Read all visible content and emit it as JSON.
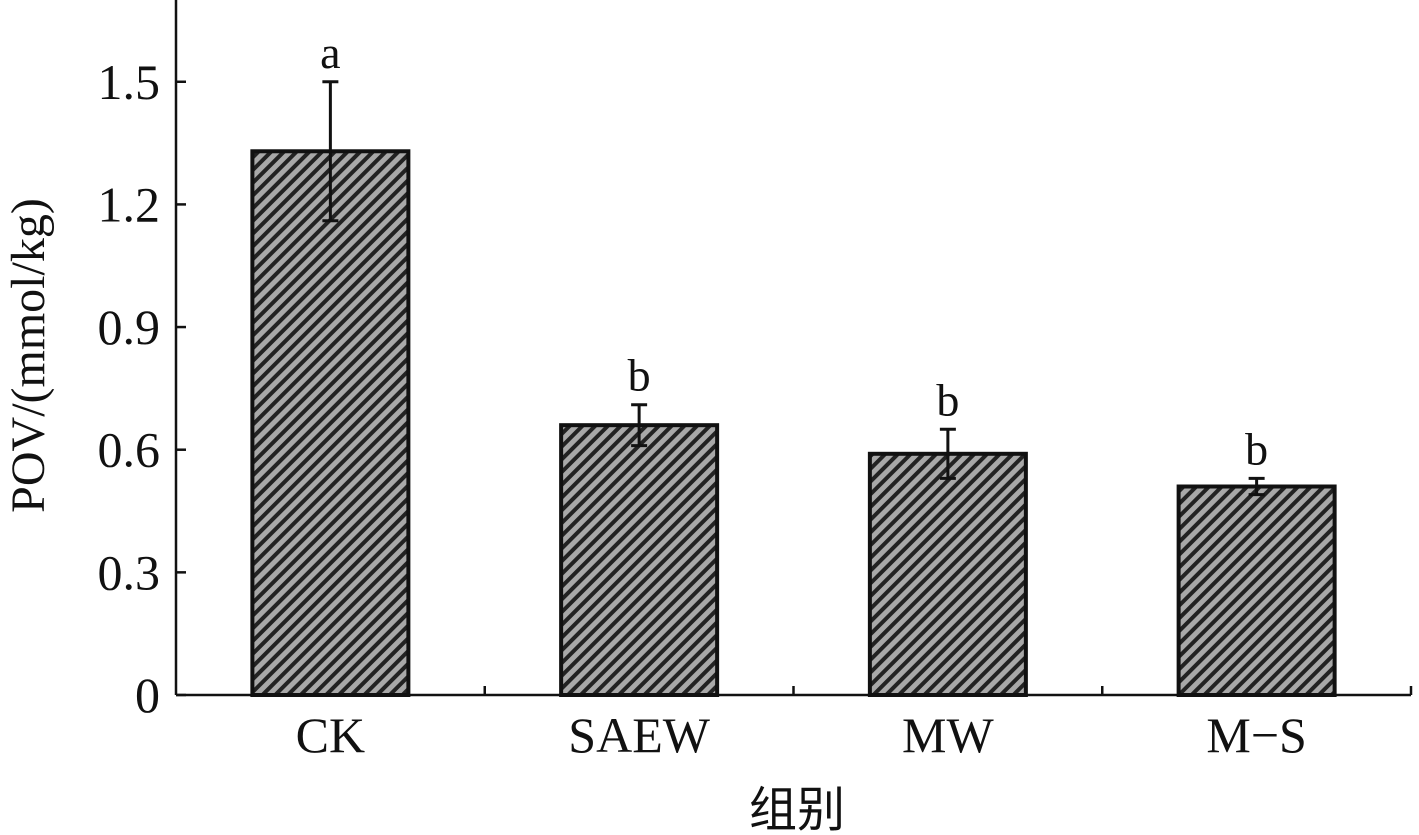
{
  "chart_data": {
    "type": "bar",
    "categories": [
      "CK",
      "SAEW",
      "MW",
      "M-S"
    ],
    "category_labels": [
      "CK",
      "SAEW",
      "MW",
      "M−S"
    ],
    "values": [
      1.33,
      0.66,
      0.59,
      0.51
    ],
    "errors": [
      0.17,
      0.05,
      0.06,
      0.02
    ],
    "significance": [
      "a",
      "b",
      "b",
      "b"
    ],
    "xlabel": "组别",
    "ylabel": "POV/(mmol/kg)",
    "ylim": [
      0,
      1.7
    ],
    "yticks": [
      0,
      0.3,
      0.6,
      0.9,
      1.2,
      1.5
    ],
    "ytick_labels": [
      "0",
      "0.3",
      "0.6",
      "0.9",
      "1.2",
      "1.5"
    ],
    "grid": false,
    "bar_pattern": "diagonal-hatch",
    "colors": {
      "bar_fill": "#a8a8a8",
      "hatch": "#222222",
      "axis": "#111111"
    }
  }
}
